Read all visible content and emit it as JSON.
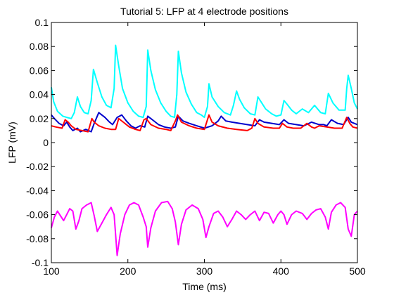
{
  "chart_data": {
    "type": "line",
    "title": "Tutorial 5: LFP at 4 electrode positions",
    "xlabel": "Time (ms)",
    "ylabel": "LFP (mV)",
    "xlim": [
      100,
      500
    ],
    "ylim": [
      -0.1,
      0.1
    ],
    "xticks": [
      100,
      200,
      300,
      400,
      500
    ],
    "xtick_labels": [
      "100",
      "200",
      "300",
      "400",
      "500"
    ],
    "yticks": [
      0.1,
      0.08,
      0.06,
      0.04,
      0.02,
      0,
      -0.02,
      -0.04,
      -0.06,
      -0.08,
      -0.1
    ],
    "ytick_labels": [
      "0.1",
      "0.08",
      "0.06",
      "0.04",
      "0.02",
      "0",
      "-0.02",
      "-0.04",
      "-0.06",
      "-0.08",
      "-0.1"
    ],
    "grid": false,
    "series": [
      {
        "color": "#00ffff",
        "x": [
          100,
          103,
          108,
          115,
          120,
          126,
          130,
          134,
          138,
          143,
          148,
          152,
          155,
          160,
          166,
          172,
          178,
          182,
          184,
          188,
          193,
          200,
          207,
          214,
          220,
          224,
          226,
          230,
          236,
          243,
          250,
          256,
          261,
          264,
          266,
          270,
          276,
          283,
          290,
          296,
          300,
          304,
          306,
          310,
          318,
          326,
          334,
          338,
          342,
          346,
          352,
          360,
          366,
          370,
          374,
          380,
          388,
          394,
          400,
          404,
          408,
          414,
          420,
          428,
          436,
          444,
          452,
          458,
          462,
          468,
          476,
          484,
          486,
          488,
          492,
          496,
          500
        ],
        "y": [
          0.046,
          0.034,
          0.026,
          0.022,
          0.021,
          0.02,
          0.025,
          0.038,
          0.03,
          0.025,
          0.024,
          0.035,
          0.061,
          0.05,
          0.038,
          0.031,
          0.029,
          0.045,
          0.081,
          0.064,
          0.045,
          0.033,
          0.026,
          0.022,
          0.021,
          0.03,
          0.077,
          0.06,
          0.044,
          0.033,
          0.026,
          0.022,
          0.021,
          0.04,
          0.076,
          0.058,
          0.042,
          0.032,
          0.025,
          0.023,
          0.021,
          0.03,
          0.049,
          0.038,
          0.03,
          0.025,
          0.023,
          0.031,
          0.043,
          0.036,
          0.029,
          0.024,
          0.023,
          0.038,
          0.034,
          0.028,
          0.024,
          0.022,
          0.023,
          0.035,
          0.032,
          0.027,
          0.024,
          0.028,
          0.025,
          0.031,
          0.025,
          0.024,
          0.041,
          0.033,
          0.027,
          0.027,
          0.045,
          0.056,
          0.045,
          0.033,
          0.028
        ]
      },
      {
        "color": "#0000cc",
        "x": [
          100,
          104,
          110,
          116,
          120,
          124,
          128,
          134,
          138,
          145,
          152,
          156,
          162,
          170,
          176,
          180,
          186,
          192,
          198,
          204,
          210,
          216,
          222,
          226,
          232,
          240,
          248,
          256,
          262,
          266,
          272,
          280,
          290,
          300,
          310,
          318,
          322,
          328,
          336,
          346,
          356,
          366,
          372,
          378,
          388,
          398,
          404,
          410,
          420,
          430,
          440,
          450,
          456,
          460,
          466,
          474,
          482,
          488,
          492,
          500
        ],
        "y": [
          0.023,
          0.02,
          0.016,
          0.014,
          0.017,
          0.013,
          0.01,
          0.012,
          0.009,
          0.011,
          0.009,
          0.016,
          0.025,
          0.021,
          0.017,
          0.015,
          0.021,
          0.023,
          0.018,
          0.014,
          0.012,
          0.014,
          0.013,
          0.022,
          0.019,
          0.015,
          0.013,
          0.012,
          0.013,
          0.022,
          0.018,
          0.016,
          0.014,
          0.012,
          0.014,
          0.018,
          0.022,
          0.018,
          0.017,
          0.016,
          0.015,
          0.014,
          0.019,
          0.017,
          0.016,
          0.015,
          0.019,
          0.016,
          0.015,
          0.014,
          0.017,
          0.015,
          0.015,
          0.014,
          0.019,
          0.016,
          0.015,
          0.021,
          0.017,
          0.015
        ]
      },
      {
        "color": "#ff0000",
        "x": [
          100,
          106,
          114,
          118,
          122,
          126,
          132,
          140,
          148,
          153,
          156,
          162,
          170,
          178,
          184,
          188,
          194,
          202,
          210,
          216,
          221,
          224,
          230,
          240,
          250,
          256,
          262,
          265,
          270,
          280,
          290,
          300,
          306,
          310,
          318,
          330,
          342,
          356,
          362,
          366,
          370,
          378,
          390,
          398,
          402,
          408,
          416,
          426,
          434,
          440,
          444,
          450,
          460,
          470,
          480,
          486,
          490,
          494,
          500
        ],
        "y": [
          0.014,
          0.013,
          0.012,
          0.019,
          0.017,
          0.014,
          0.011,
          0.01,
          0.009,
          0.02,
          0.017,
          0.014,
          0.012,
          0.011,
          0.011,
          0.02,
          0.017,
          0.013,
          0.011,
          0.01,
          0.019,
          0.02,
          0.015,
          0.012,
          0.011,
          0.01,
          0.018,
          0.023,
          0.017,
          0.014,
          0.012,
          0.011,
          0.023,
          0.017,
          0.014,
          0.012,
          0.011,
          0.01,
          0.012,
          0.02,
          0.016,
          0.013,
          0.012,
          0.012,
          0.016,
          0.013,
          0.012,
          0.012,
          0.016,
          0.013,
          0.012,
          0.014,
          0.013,
          0.012,
          0.012,
          0.021,
          0.016,
          0.013,
          0.012
        ]
      },
      {
        "color": "#ff00ff",
        "x": [
          100,
          104,
          108,
          112,
          116,
          120,
          124,
          128,
          132,
          136,
          140,
          146,
          152,
          156,
          160,
          166,
          172,
          178,
          182,
          186,
          190,
          196,
          202,
          208,
          214,
          220,
          224,
          226,
          230,
          236,
          244,
          252,
          258,
          262,
          266,
          270,
          276,
          284,
          292,
          298,
          302,
          306,
          312,
          318,
          324,
          330,
          336,
          342,
          348,
          354,
          360,
          366,
          372,
          378,
          384,
          390,
          396,
          400,
          404,
          408,
          414,
          420,
          428,
          434,
          440,
          446,
          452,
          458,
          462,
          466,
          472,
          478,
          484,
          488,
          492,
          496,
          500
        ],
        "y": [
          -0.071,
          -0.062,
          -0.057,
          -0.061,
          -0.065,
          -0.06,
          -0.055,
          -0.057,
          -0.072,
          -0.065,
          -0.055,
          -0.052,
          -0.05,
          -0.061,
          -0.074,
          -0.067,
          -0.06,
          -0.054,
          -0.06,
          -0.094,
          -0.076,
          -0.06,
          -0.052,
          -0.05,
          -0.052,
          -0.062,
          -0.07,
          -0.087,
          -0.071,
          -0.057,
          -0.05,
          -0.049,
          -0.055,
          -0.066,
          -0.085,
          -0.068,
          -0.056,
          -0.052,
          -0.055,
          -0.064,
          -0.079,
          -0.07,
          -0.059,
          -0.057,
          -0.062,
          -0.07,
          -0.064,
          -0.057,
          -0.06,
          -0.064,
          -0.06,
          -0.057,
          -0.065,
          -0.058,
          -0.059,
          -0.067,
          -0.06,
          -0.057,
          -0.06,
          -0.068,
          -0.06,
          -0.057,
          -0.059,
          -0.064,
          -0.059,
          -0.056,
          -0.055,
          -0.062,
          -0.072,
          -0.058,
          -0.052,
          -0.05,
          -0.054,
          -0.072,
          -0.078,
          -0.06,
          -0.057
        ]
      }
    ]
  }
}
